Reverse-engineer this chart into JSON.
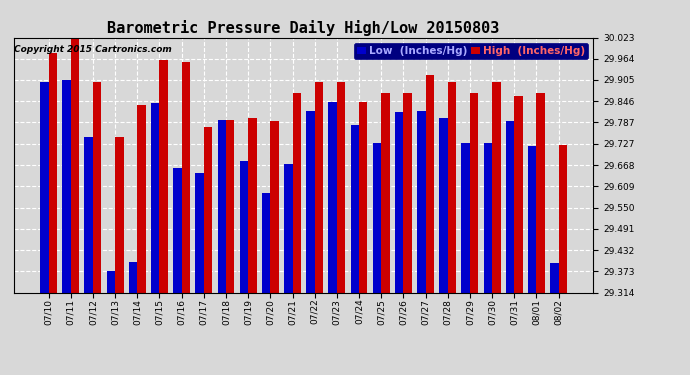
{
  "title": "Barometric Pressure Daily High/Low 20150803",
  "copyright": "Copyright 2015 Cartronics.com",
  "legend_low": "Low  (Inches/Hg)",
  "legend_high": "High  (Inches/Hg)",
  "dates": [
    "07/10",
    "07/11",
    "07/12",
    "07/13",
    "07/14",
    "07/15",
    "07/16",
    "07/17",
    "07/18",
    "07/19",
    "07/20",
    "07/21",
    "07/22",
    "07/23",
    "07/24",
    "07/25",
    "07/26",
    "07/27",
    "07/28",
    "07/29",
    "07/30",
    "07/31",
    "08/01",
    "08/02"
  ],
  "low": [
    29.9,
    29.905,
    29.745,
    29.375,
    29.4,
    29.84,
    29.66,
    29.645,
    29.795,
    29.68,
    29.59,
    29.67,
    29.82,
    29.845,
    29.78,
    29.73,
    29.815,
    29.82,
    29.8,
    29.73,
    29.73,
    29.79,
    29.72,
    29.395
  ],
  "high": [
    29.98,
    30.02,
    29.9,
    29.745,
    29.835,
    29.96,
    29.955,
    29.775,
    29.795,
    29.8,
    29.79,
    29.87,
    29.9,
    29.9,
    29.845,
    29.87,
    29.87,
    29.92,
    29.9,
    29.87,
    29.9,
    29.86,
    29.87,
    29.725
  ],
  "ymin": 29.314,
  "ymax": 30.023,
  "yticks": [
    29.314,
    29.373,
    29.432,
    29.491,
    29.55,
    29.609,
    29.668,
    29.727,
    29.787,
    29.846,
    29.905,
    29.964,
    30.023
  ],
  "bar_width": 0.38,
  "low_color": "#0000cc",
  "high_color": "#cc0000",
  "bg_color": "#d8d8d8",
  "plot_bg_color": "#d8d8d8",
  "grid_color": "#ffffff",
  "title_fontsize": 11,
  "copyright_fontsize": 6.5,
  "tick_fontsize": 6.5,
  "legend_fontsize": 7.5
}
